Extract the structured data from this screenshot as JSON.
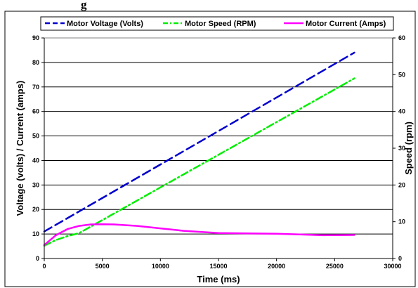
{
  "chart_data": {
    "type": "line",
    "title": "g",
    "xlabel": "Time (ms)",
    "ylabel": "Voltage (volts) / Current (amps)",
    "y2label": "Speed (rpm)",
    "xlim": [
      0,
      30000
    ],
    "ylim": [
      0,
      90
    ],
    "y2lim": [
      0,
      60
    ],
    "xticks": [
      0,
      5000,
      10000,
      15000,
      20000,
      25000,
      30000
    ],
    "yticks": [
      0,
      10,
      20,
      30,
      40,
      50,
      60,
      70,
      80,
      90
    ],
    "y2ticks": [
      0,
      10,
      20,
      30,
      40,
      50,
      60
    ],
    "grid": "horizontal",
    "legend_position": "top",
    "series": [
      {
        "name": "Motor Voltage (Volts)",
        "axis": "left",
        "color": "#0000CC",
        "dash": "dashed",
        "x": [
          0,
          26700
        ],
        "y": [
          11,
          84
        ]
      },
      {
        "name": "Motor Speed (RPM)",
        "axis": "right",
        "color": "#00EE00",
        "dash": "dash-dot",
        "x": [
          0,
          1000,
          2000,
          3000,
          26700
        ],
        "y": [
          3.5,
          5,
          6.1,
          6.9,
          49
        ]
      },
      {
        "name": "Motor Current (Amps)",
        "axis": "left",
        "color": "#FF00FF",
        "dash": "solid",
        "x": [
          0,
          500,
          1000,
          2000,
          3000,
          4000,
          5000,
          6000,
          8000,
          10000,
          12000,
          15000,
          18000,
          20000,
          22000,
          24000,
          26700
        ],
        "y": [
          5.5,
          7.5,
          9.5,
          12,
          13.3,
          13.9,
          14,
          13.9,
          13.3,
          12.3,
          11.3,
          10.4,
          10.2,
          10.1,
          9.8,
          9.5,
          9.6
        ]
      }
    ]
  }
}
